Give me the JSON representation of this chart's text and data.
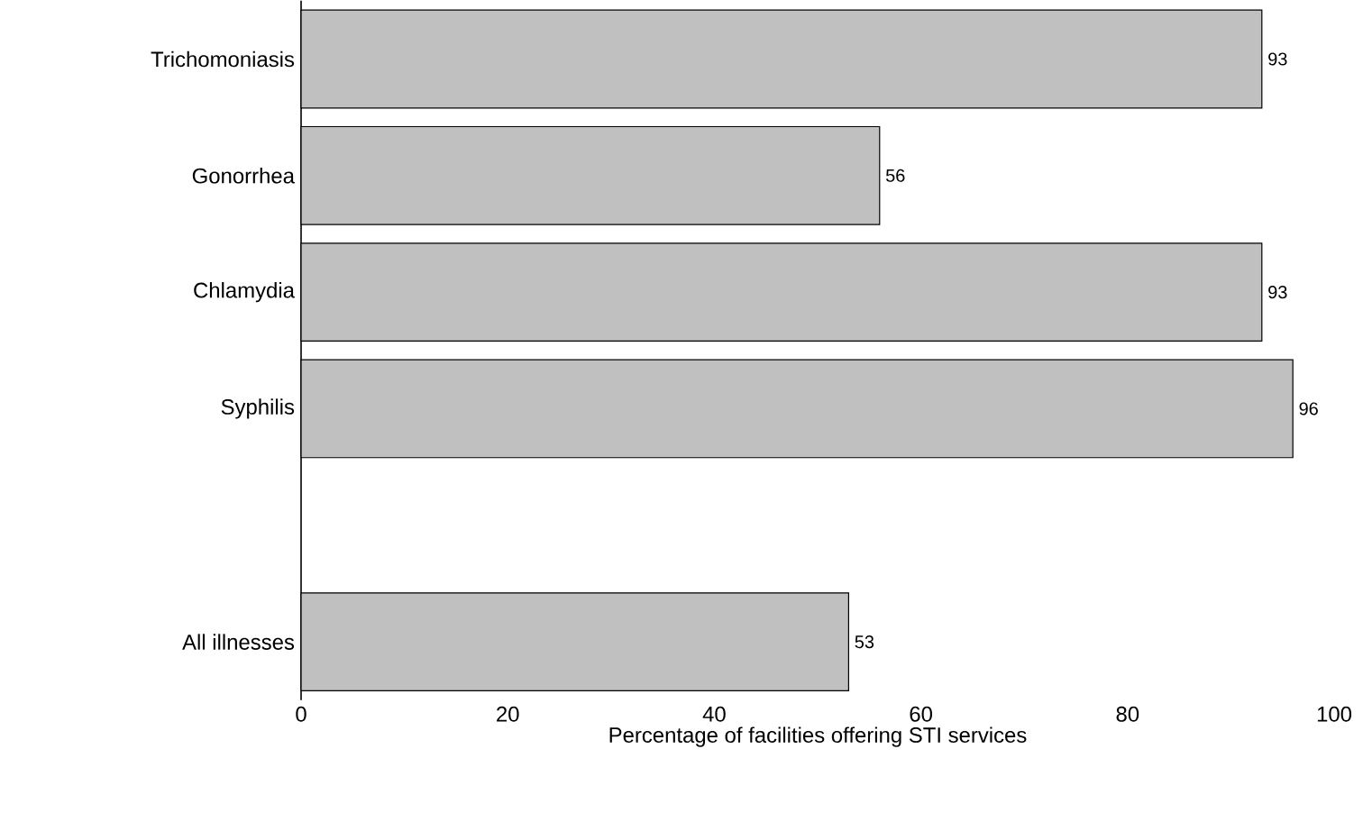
{
  "chart_data": {
    "type": "bar",
    "orientation": "horizontal",
    "xlabel": "Percentage of facilities offering STI services",
    "categories": [
      "Trichomoniasis",
      "Gonorrhea",
      "Chlamydia",
      "Syphilis",
      null,
      "All illnesses"
    ],
    "values": [
      93,
      56,
      93,
      96,
      null,
      53
    ],
    "color": "#c0c0c0",
    "data_labels": true,
    "xlim": [
      0,
      100
    ],
    "xticks": [
      0,
      20,
      40,
      60,
      80,
      100
    ],
    "grid": false
  }
}
